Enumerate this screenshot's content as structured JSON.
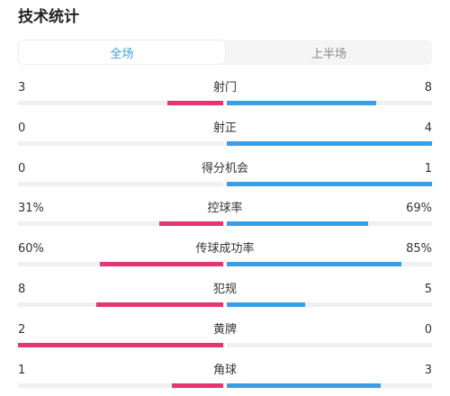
{
  "page": {
    "title": "技术统计"
  },
  "tabs": [
    {
      "label": "全场",
      "active": true
    },
    {
      "label": "上半场",
      "active": false
    }
  ],
  "colors": {
    "home_bar": "#e8356e",
    "away_bar": "#3a9ee6",
    "active_tab": "#3a9ee6"
  },
  "stats": [
    {
      "name": "射门",
      "home": "3",
      "away": "8",
      "home_fraction": 0.27,
      "away_fraction": 0.73
    },
    {
      "name": "射正",
      "home": "0",
      "away": "4",
      "home_fraction": 0.0,
      "away_fraction": 1.0
    },
    {
      "name": "得分机会",
      "home": "0",
      "away": "1",
      "home_fraction": 0.0,
      "away_fraction": 1.0
    },
    {
      "name": "控球率",
      "home": "31%",
      "away": "69%",
      "home_fraction": 0.31,
      "away_fraction": 0.69
    },
    {
      "name": "传球成功率",
      "home": "60%",
      "away": "85%",
      "home_fraction": 0.6,
      "away_fraction": 0.85
    },
    {
      "name": "犯规",
      "home": "8",
      "away": "5",
      "home_fraction": 0.62,
      "away_fraction": 0.38
    },
    {
      "name": "黄牌",
      "home": "2",
      "away": "0",
      "home_fraction": 1.0,
      "away_fraction": 0.0
    },
    {
      "name": "角球",
      "home": "1",
      "away": "3",
      "home_fraction": 0.25,
      "away_fraction": 0.75
    }
  ]
}
